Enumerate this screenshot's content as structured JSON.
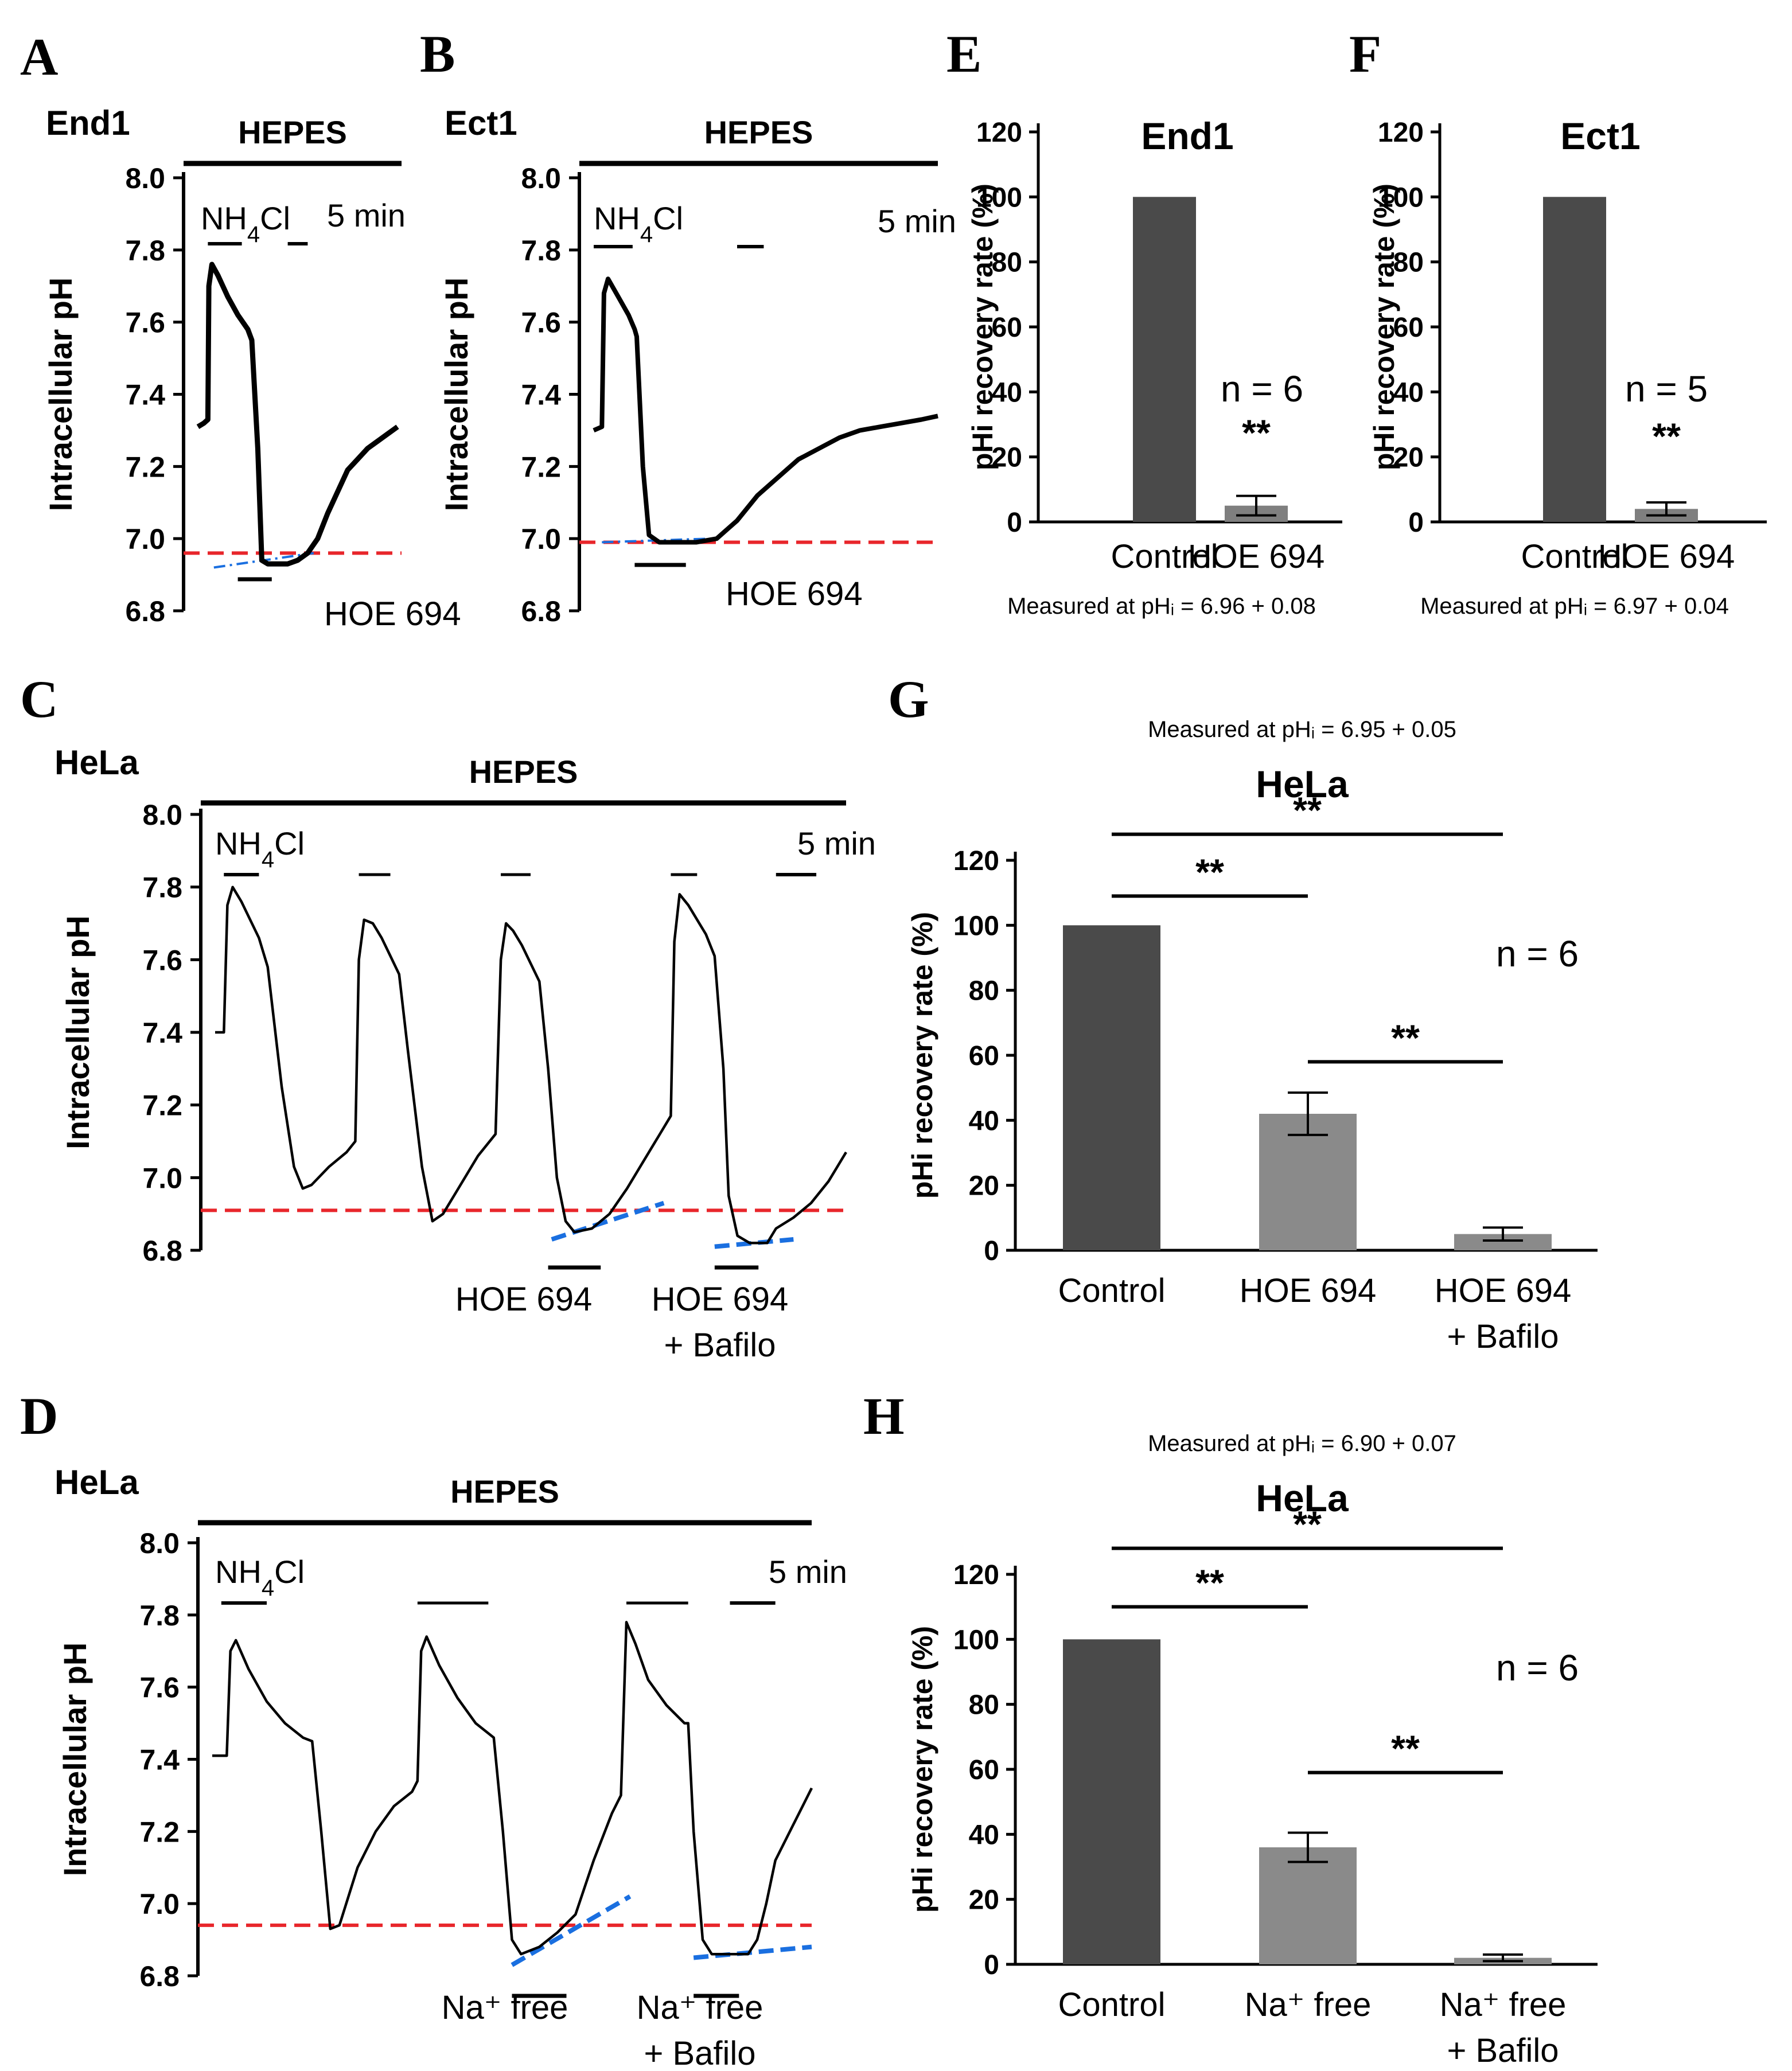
{
  "figure": {
    "panel_letters": [
      "A",
      "B",
      "C",
      "D",
      "E",
      "F",
      "G",
      "H"
    ]
  },
  "colors": {
    "ink": "#000000",
    "control_bar": "#4a4a4a",
    "treated_bar": "#7f7f7f",
    "light_bar": "#8a8a8a",
    "threshold_line": "#e8262b",
    "slope_line": "#1a6fe0"
  },
  "chart_data": [
    {
      "panel": "A",
      "type": "line",
      "cell_label": "End1",
      "solution_label": "HEPES",
      "ylabel": "Intracellular pH",
      "ylim": [
        6.8,
        8.0
      ],
      "yticks": [
        "8.0",
        "7.8",
        "7.6",
        "7.4",
        "7.2",
        "7.0",
        "6.8"
      ],
      "x_minutes": [
        0,
        14
      ],
      "scale_bar": "5 min",
      "pulse_label": "NH4Cl",
      "treatment_labels": [
        "HOE 694"
      ],
      "threshold_ph": 6.96,
      "trace": [
        [
          0,
          7.31
        ],
        [
          0.3,
          7.32
        ],
        [
          0.5,
          7.33
        ],
        [
          0.55,
          7.7
        ],
        [
          0.7,
          7.76
        ],
        [
          1.0,
          7.73
        ],
        [
          1.5,
          7.67
        ],
        [
          2.0,
          7.62
        ],
        [
          2.5,
          7.58
        ],
        [
          2.7,
          7.55
        ],
        [
          3.0,
          7.25
        ],
        [
          3.2,
          6.94
        ],
        [
          3.5,
          6.93
        ],
        [
          4.0,
          6.93
        ],
        [
          4.5,
          6.93
        ],
        [
          5.0,
          6.94
        ],
        [
          5.5,
          6.96
        ],
        [
          6.0,
          7.0
        ],
        [
          6.5,
          7.07
        ],
        [
          7.0,
          7.13
        ],
        [
          7.5,
          7.19
        ],
        [
          8.0,
          7.22
        ],
        [
          8.5,
          7.25
        ],
        [
          9.0,
          7.27
        ],
        [
          9.5,
          7.29
        ],
        [
          10.0,
          7.31
        ]
      ],
      "slopes": [
        [
          [
            0.8,
            6.92
          ],
          [
            5.8,
            6.96
          ]
        ]
      ],
      "segments": {
        "nh4cl": [
          0.5,
          2.2
        ],
        "scale": [
          4.5,
          5.5
        ],
        "treatments": [
          [
            2.0,
            3.7
          ]
        ]
      }
    },
    {
      "panel": "B",
      "type": "line",
      "cell_label": "Ect1",
      "solution_label": "HEPES",
      "ylabel": "Intracellular pH",
      "ylim": [
        6.8,
        8.0
      ],
      "yticks": [
        "8.0",
        "7.8",
        "7.6",
        "7.4",
        "7.2",
        "7.0",
        "6.8"
      ],
      "x_minutes": [
        0,
        20
      ],
      "scale_bar": "5 min",
      "pulse_label": "NH4Cl",
      "treatment_labels": [
        "HOE 694"
      ],
      "threshold_ph": 6.99,
      "trace": [
        [
          0,
          7.3
        ],
        [
          0.4,
          7.31
        ],
        [
          0.5,
          7.68
        ],
        [
          0.7,
          7.72
        ],
        [
          1.2,
          7.67
        ],
        [
          1.7,
          7.62
        ],
        [
          2.0,
          7.58
        ],
        [
          2.1,
          7.56
        ],
        [
          2.4,
          7.2
        ],
        [
          2.7,
          7.01
        ],
        [
          3.2,
          6.99
        ],
        [
          4.0,
          6.99
        ],
        [
          5.0,
          6.99
        ],
        [
          6.0,
          7.0
        ],
        [
          7.0,
          7.05
        ],
        [
          8.0,
          7.12
        ],
        [
          9.0,
          7.17
        ],
        [
          10.0,
          7.22
        ],
        [
          11.0,
          7.25
        ],
        [
          12.0,
          7.28
        ],
        [
          13.0,
          7.3
        ],
        [
          14.0,
          7.31
        ],
        [
          15.0,
          7.32
        ],
        [
          16.0,
          7.33
        ],
        [
          16.8,
          7.34
        ]
      ],
      "slopes": [
        [
          [
            0.4,
            6.99
          ],
          [
            5.7,
            7.0
          ]
        ]
      ],
      "segments": {
        "nh4cl": [
          0.0,
          1.9
        ],
        "scale": [
          7.0,
          8.3
        ],
        "treatments": [
          [
            2.0,
            4.5
          ]
        ]
      }
    },
    {
      "panel": "C",
      "type": "line",
      "cell_label": "HeLa",
      "solution_label": "HEPES",
      "ylabel": "Intracellular pH",
      "ylim": [
        6.8,
        8.0
      ],
      "yticks": [
        "8.0",
        "7.8",
        "7.6",
        "7.4",
        "7.2",
        "7.0",
        "6.8"
      ],
      "x_minutes": [
        0,
        36
      ],
      "scale_bar": "5 min",
      "pulse_label": "NH4Cl",
      "treatment_labels": [
        "HOE 694",
        "HOE 694",
        "+ Bafilo"
      ],
      "threshold_ph": 6.91,
      "trace": [
        [
          0,
          7.4
        ],
        [
          0.5,
          7.4
        ],
        [
          0.7,
          7.75
        ],
        [
          1.0,
          7.8
        ],
        [
          1.5,
          7.76
        ],
        [
          2.0,
          7.71
        ],
        [
          2.5,
          7.66
        ],
        [
          3.0,
          7.58
        ],
        [
          3.8,
          7.25
        ],
        [
          4.5,
          7.03
        ],
        [
          5.0,
          6.97
        ],
        [
          5.5,
          6.98
        ],
        [
          6.5,
          7.03
        ],
        [
          7.5,
          7.07
        ],
        [
          8.0,
          7.1
        ],
        [
          8.2,
          7.6
        ],
        [
          8.5,
          7.71
        ],
        [
          9.0,
          7.7
        ],
        [
          9.5,
          7.66
        ],
        [
          10.0,
          7.61
        ],
        [
          10.5,
          7.56
        ],
        [
          11.0,
          7.35
        ],
        [
          11.8,
          7.03
        ],
        [
          12.4,
          6.88
        ],
        [
          13.0,
          6.9
        ],
        [
          14.0,
          6.98
        ],
        [
          15.0,
          7.06
        ],
        [
          16.0,
          7.12
        ],
        [
          16.3,
          7.6
        ],
        [
          16.6,
          7.7
        ],
        [
          17.0,
          7.68
        ],
        [
          17.5,
          7.64
        ],
        [
          18.0,
          7.59
        ],
        [
          18.5,
          7.54
        ],
        [
          19.0,
          7.3
        ],
        [
          19.5,
          7.0
        ],
        [
          20.0,
          6.88
        ],
        [
          20.5,
          6.85
        ],
        [
          21.5,
          6.86
        ],
        [
          22.5,
          6.9
        ],
        [
          23.5,
          6.97
        ],
        [
          24.5,
          7.05
        ],
        [
          25.5,
          7.13
        ],
        [
          26.0,
          7.17
        ],
        [
          26.2,
          7.65
        ],
        [
          26.5,
          7.78
        ],
        [
          27.0,
          7.75
        ],
        [
          27.5,
          7.71
        ],
        [
          28.0,
          7.67
        ],
        [
          28.5,
          7.61
        ],
        [
          29.0,
          7.3
        ],
        [
          29.3,
          6.95
        ],
        [
          29.8,
          6.84
        ],
        [
          30.5,
          6.82
        ],
        [
          31.5,
          6.82
        ],
        [
          32.0,
          6.86
        ],
        [
          33.0,
          6.89
        ],
        [
          34.0,
          6.93
        ],
        [
          35.0,
          6.99
        ],
        [
          36.0,
          7.07
        ]
      ],
      "slopes": [
        [
          [
            19.2,
            6.83
          ],
          [
            25.6,
            6.93
          ]
        ],
        [
          [
            28.5,
            6.81
          ],
          [
            33.0,
            6.83
          ]
        ]
      ],
      "segments": {
        "nh4cl": [
          0.5,
          2.5
        ],
        "scale": [
          32.0,
          34.3
        ],
        "treatments": [
          [
            19.0,
            22.0
          ],
          [
            28.5,
            31.0
          ]
        ]
      }
    },
    {
      "panel": "D",
      "type": "line",
      "cell_label": "HeLa",
      "solution_label": "HEPES",
      "ylabel": "Intracellular pH",
      "ylim": [
        6.8,
        8.0
      ],
      "yticks": [
        "8.0",
        "7.8",
        "7.6",
        "7.4",
        "7.2",
        "7.0",
        "6.8"
      ],
      "x_minutes": [
        0,
        33
      ],
      "scale_bar": "5 min",
      "pulse_label": "NH4Cl",
      "treatment_labels": [
        "Na⁺ free",
        "Na⁺ free",
        "+ Bafilo"
      ],
      "threshold_ph": 6.94,
      "trace": [
        [
          0,
          7.41
        ],
        [
          0.5,
          7.41
        ],
        [
          0.8,
          7.41
        ],
        [
          1.0,
          7.7
        ],
        [
          1.3,
          7.73
        ],
        [
          2.0,
          7.65
        ],
        [
          3.0,
          7.56
        ],
        [
          4.0,
          7.5
        ],
        [
          5.0,
          7.46
        ],
        [
          5.5,
          7.45
        ],
        [
          6.0,
          7.2
        ],
        [
          6.5,
          6.93
        ],
        [
          7.0,
          6.94
        ],
        [
          8.0,
          7.1
        ],
        [
          9.0,
          7.2
        ],
        [
          10.0,
          7.27
        ],
        [
          11.0,
          7.31
        ],
        [
          11.3,
          7.34
        ],
        [
          11.5,
          7.7
        ],
        [
          11.8,
          7.74
        ],
        [
          12.5,
          7.66
        ],
        [
          13.5,
          7.57
        ],
        [
          14.5,
          7.5
        ],
        [
          15.5,
          7.46
        ],
        [
          16.0,
          7.2
        ],
        [
          16.5,
          6.9
        ],
        [
          17.0,
          6.86
        ],
        [
          18.0,
          6.88
        ],
        [
          19.0,
          6.92
        ],
        [
          20.0,
          6.97
        ],
        [
          21.0,
          7.12
        ],
        [
          22.0,
          7.25
        ],
        [
          22.5,
          7.3
        ],
        [
          22.8,
          7.78
        ],
        [
          23.3,
          7.72
        ],
        [
          24.0,
          7.62
        ],
        [
          25.0,
          7.55
        ],
        [
          26.0,
          7.5
        ],
        [
          26.2,
          7.5
        ],
        [
          26.5,
          7.2
        ],
        [
          27.0,
          6.9
        ],
        [
          27.5,
          6.86
        ],
        [
          28.5,
          6.86
        ],
        [
          29.5,
          6.86
        ],
        [
          30.0,
          6.9
        ],
        [
          30.5,
          7.0
        ],
        [
          31.0,
          7.12
        ],
        [
          32.0,
          7.22
        ],
        [
          33.0,
          7.32
        ]
      ],
      "slopes": [
        [
          [
            16.5,
            6.83
          ],
          [
            23.0,
            7.02
          ]
        ],
        [
          [
            26.5,
            6.85
          ],
          [
            33.0,
            6.88
          ]
        ]
      ],
      "segments": {
        "nh4cl": [
          0.5,
          3.0
        ],
        "scale": [
          28.5,
          31.0
        ],
        "treatments": [
          [
            16.5,
            19.5
          ],
          [
            26.5,
            29.0
          ]
        ]
      }
    },
    {
      "panel": "E",
      "type": "bar",
      "title": "End1",
      "ylabel": "pHi recovery rate (%)",
      "ylim": [
        0,
        120
      ],
      "yticks": [
        "0",
        "20",
        "40",
        "60",
        "80",
        "100",
        "120"
      ],
      "categories": [
        "Control",
        "HOE 694"
      ],
      "values": [
        100,
        5
      ],
      "errors": [
        0,
        3
      ],
      "n_label": "n = 6",
      "significance": [
        {
          "bar": 1,
          "label": "**"
        }
      ],
      "footnote": "Measured at pHᵢ = 6.96 + 0.08"
    },
    {
      "panel": "F",
      "type": "bar",
      "title": "Ect1",
      "ylabel": "pHi recovery rate (%)",
      "ylim": [
        0,
        120
      ],
      "yticks": [
        "0",
        "20",
        "40",
        "60",
        "80",
        "100",
        "120"
      ],
      "categories": [
        "Control",
        "HOE 694"
      ],
      "values": [
        100,
        4
      ],
      "errors": [
        0,
        2
      ],
      "n_label": "n = 5",
      "significance": [
        {
          "bar": 1,
          "label": "**"
        }
      ],
      "footnote": "Measured at pHᵢ = 6.97 + 0.04"
    },
    {
      "panel": "G",
      "type": "bar",
      "title": "HeLa",
      "header": "Measured at pHᵢ = 6.95 + 0.05",
      "ylabel": "pHi recovery rate (%)",
      "ylim": [
        0,
        120
      ],
      "yticks": [
        "0",
        "20",
        "40",
        "60",
        "80",
        "100",
        "120"
      ],
      "categories": [
        "Control",
        "HOE 694",
        "HOE 694"
      ],
      "category_sub": [
        "",
        "",
        "+ Bafilo"
      ],
      "values": [
        100,
        42,
        5
      ],
      "errors": [
        0,
        6.5,
        2
      ],
      "n_label": "n = 6",
      "brackets": [
        {
          "from": 0,
          "to": 2,
          "level": 128,
          "label": "**"
        },
        {
          "from": 0,
          "to": 1,
          "level": 109,
          "label": "**"
        },
        {
          "from": 1,
          "to": 2,
          "level": 58,
          "label": "**"
        }
      ]
    },
    {
      "panel": "H",
      "type": "bar",
      "title": "HeLa",
      "header": "Measured at pHᵢ = 6.90 + 0.07",
      "ylabel": "pHi recovery rate (%)",
      "ylim": [
        0,
        120
      ],
      "yticks": [
        "0",
        "20",
        "40",
        "60",
        "80",
        "100",
        "120"
      ],
      "categories": [
        "Control",
        "Na⁺ free",
        "Na⁺ free"
      ],
      "category_sub": [
        "",
        "",
        "+ Bafilo"
      ],
      "values": [
        100,
        36,
        2
      ],
      "errors": [
        0,
        4.5,
        1
      ],
      "n_label": "n = 6",
      "brackets": [
        {
          "from": 0,
          "to": 2,
          "level": 128,
          "label": "**"
        },
        {
          "from": 0,
          "to": 1,
          "level": 110,
          "label": "**"
        },
        {
          "from": 1,
          "to": 2,
          "level": 59,
          "label": "**"
        }
      ]
    }
  ]
}
